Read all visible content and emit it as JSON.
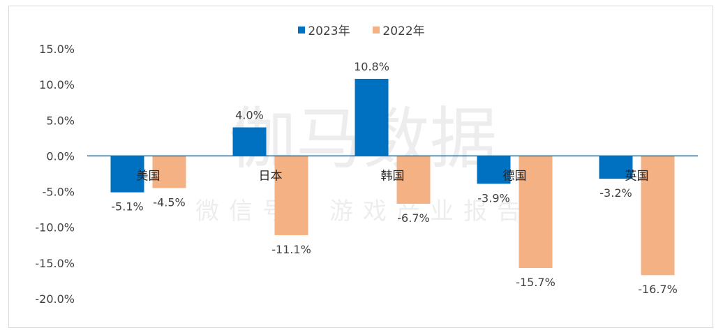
{
  "chart_data": {
    "type": "bar",
    "categories": [
      "美国",
      "日本",
      "韩国",
      "德国",
      "英国"
    ],
    "series": [
      {
        "name": "2023年",
        "color": "#0070C0",
        "values": [
          -5.1,
          4.0,
          10.8,
          -3.9,
          -3.2
        ],
        "labels": [
          "-5.1%",
          "4.0%",
          "10.8%",
          "-3.9%",
          "-3.2%"
        ]
      },
      {
        "name": "2022年",
        "color": "#F4B183",
        "values": [
          -4.5,
          -11.1,
          -6.7,
          -15.7,
          -16.7
        ],
        "labels": [
          "-4.5%",
          "-11.1%",
          "-6.7%",
          "-15.7%",
          "-16.7%"
        ]
      }
    ],
    "ylim": [
      -20,
      15
    ],
    "yticks": [
      "15.0%",
      "10.0%",
      "5.0%",
      "0.0%",
      "-5.0%",
      "-10.0%",
      "-15.0%",
      "-20.0%"
    ],
    "ytick_values": [
      15,
      10,
      5,
      0,
      -5,
      -10,
      -15,
      -20
    ],
    "grid": false,
    "legend": "top-center",
    "axis_color": "#0070C0"
  },
  "watermark": {
    "main": "伽马数据",
    "sub": "微信号：游戏产业报告"
  }
}
